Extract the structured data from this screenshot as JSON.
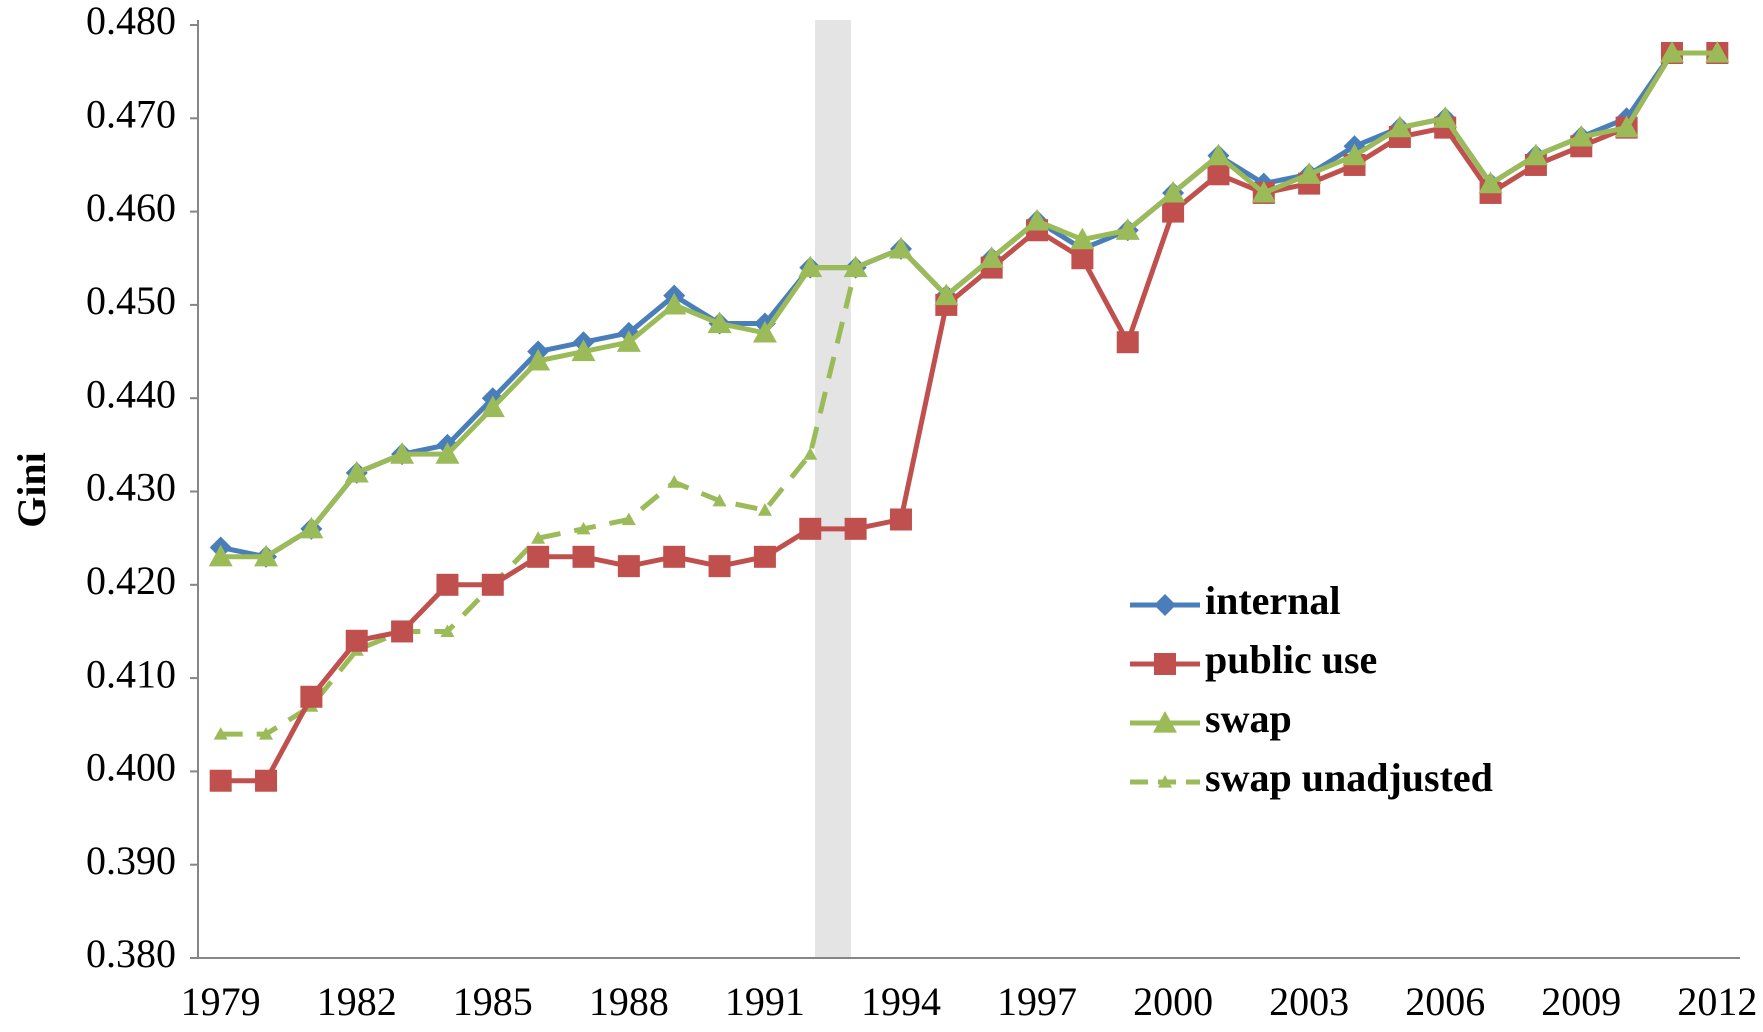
{
  "chart_data": {
    "type": "line",
    "y_label": "Gini",
    "categories": [
      "1979",
      null,
      null,
      "1982",
      null,
      null,
      "1985",
      null,
      null,
      "1988",
      null,
      null,
      "1991",
      null,
      null,
      "1994",
      null,
      null,
      "1997",
      null,
      null,
      "2000",
      null,
      null,
      "2003",
      null,
      null,
      "2006",
      null,
      null,
      "2009",
      null,
      null,
      "2012"
    ],
    "series": [
      {
        "name": "swap unadjusted",
        "color": "#9bbb59",
        "dashed": true,
        "marker": "small-triangle",
        "values": [
          0.404,
          0.404,
          0.407,
          0.413,
          0.415,
          0.415,
          0.42,
          0.425,
          0.426,
          0.427,
          0.431,
          0.429,
          0.428,
          0.434,
          0.454,
          null,
          null,
          null,
          null,
          null,
          null,
          null,
          null,
          null,
          null,
          null,
          null,
          null,
          null,
          null,
          null,
          null,
          null,
          null
        ]
      },
      {
        "name": "internal",
        "color": "#4a7ebb",
        "marker": "diamond",
        "values": [
          0.424,
          0.423,
          0.426,
          0.432,
          0.434,
          0.435,
          0.44,
          0.445,
          0.446,
          0.447,
          0.451,
          0.448,
          0.448,
          0.454,
          0.454,
          0.456,
          0.451,
          0.455,
          0.459,
          0.456,
          0.458,
          0.462,
          0.466,
          0.463,
          0.464,
          0.467,
          0.469,
          0.47,
          0.463,
          0.466,
          0.468,
          0.47,
          0.477,
          0.477
        ]
      },
      {
        "name": "public use",
        "color": "#c0504d",
        "marker": "square",
        "values": [
          0.399,
          0.399,
          0.408,
          0.414,
          0.415,
          0.42,
          0.42,
          0.423,
          0.423,
          0.422,
          0.423,
          0.422,
          0.423,
          0.426,
          0.426,
          0.427,
          0.45,
          0.454,
          0.458,
          0.455,
          0.446,
          0.46,
          0.464,
          0.462,
          0.463,
          0.465,
          0.468,
          0.469,
          0.462,
          0.465,
          0.467,
          0.469,
          0.477,
          0.477
        ]
      },
      {
        "name": "swap",
        "color": "#9bbb59",
        "marker": "triangle",
        "values": [
          0.423,
          0.423,
          0.426,
          0.432,
          0.434,
          0.434,
          0.439,
          0.444,
          0.445,
          0.446,
          0.45,
          0.448,
          0.447,
          0.454,
          0.454,
          0.456,
          0.451,
          0.455,
          0.459,
          0.457,
          0.458,
          0.462,
          0.466,
          0.462,
          0.464,
          0.466,
          0.469,
          0.47,
          0.463,
          0.466,
          0.468,
          0.469,
          0.477,
          0.477
        ]
      }
    ],
    "legend_order": [
      1,
      2,
      3,
      0
    ],
    "ylim": [
      0.38,
      0.48
    ],
    "yticks": [
      {
        "value": 0.38,
        "label": "0.380"
      },
      {
        "value": 0.39,
        "label": "0.390"
      },
      {
        "value": 0.4,
        "label": "0.400"
      },
      {
        "value": 0.41,
        "label": "0.410"
      },
      {
        "value": 0.42,
        "label": "0.420"
      },
      {
        "value": 0.43,
        "label": "0.430"
      },
      {
        "value": 0.44,
        "label": "0.440"
      },
      {
        "value": 0.45,
        "label": "0.450"
      },
      {
        "value": 0.46,
        "label": "0.460"
      },
      {
        "value": 0.47,
        "label": "0.470"
      },
      {
        "value": 0.48,
        "label": "0.480"
      }
    ],
    "grid": false,
    "legend": "lower right"
  }
}
